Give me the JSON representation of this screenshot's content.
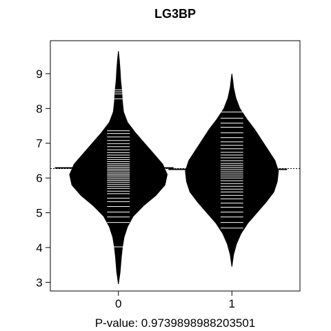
{
  "chart_data": {
    "type": "beanplot",
    "title": "LG3BP",
    "xlabel": "P-value: 0.9739898988203501",
    "ylabel": "",
    "categories": [
      "0",
      "1"
    ],
    "xlim": [
      -0.6,
      1.6
    ],
    "ylim": [
      2.75,
      9.95
    ],
    "yticks": [
      3,
      4,
      5,
      6,
      7,
      8,
      9
    ],
    "overall_line": 6.27,
    "grid": false,
    "beans": [
      {
        "category": "0",
        "mean": 6.29,
        "density": [
          [
            2.95,
            0.0
          ],
          [
            3.3,
            0.015
          ],
          [
            3.7,
            0.025
          ],
          [
            4.0,
            0.035
          ],
          [
            4.3,
            0.05
          ],
          [
            4.6,
            0.08
          ],
          [
            4.9,
            0.13
          ],
          [
            5.2,
            0.22
          ],
          [
            5.5,
            0.33
          ],
          [
            5.8,
            0.41
          ],
          [
            6.1,
            0.43
          ],
          [
            6.4,
            0.39
          ],
          [
            6.7,
            0.31
          ],
          [
            7.0,
            0.23
          ],
          [
            7.3,
            0.15
          ],
          [
            7.6,
            0.08
          ],
          [
            7.9,
            0.045
          ],
          [
            8.2,
            0.035
          ],
          [
            8.5,
            0.03
          ],
          [
            8.8,
            0.02
          ],
          [
            9.1,
            0.015
          ],
          [
            9.4,
            0.008
          ],
          [
            9.65,
            0.0
          ]
        ],
        "observations": [
          4.02,
          4.72,
          4.88,
          5.02,
          5.18,
          5.32,
          5.42,
          5.55,
          5.62,
          5.7,
          5.76,
          5.82,
          5.88,
          5.93,
          5.98,
          6.03,
          6.08,
          6.12,
          6.17,
          6.22,
          6.26,
          6.31,
          6.36,
          6.41,
          6.47,
          6.53,
          6.59,
          6.66,
          6.73,
          6.81,
          6.9,
          6.99,
          7.08,
          7.18,
          7.28,
          7.36,
          8.28,
          8.42,
          8.48,
          8.54
        ]
      },
      {
        "category": "1",
        "mean": 6.25,
        "density": [
          [
            3.45,
            0.0
          ],
          [
            3.8,
            0.015
          ],
          [
            4.1,
            0.04
          ],
          [
            4.4,
            0.08
          ],
          [
            4.7,
            0.14
          ],
          [
            5.0,
            0.22
          ],
          [
            5.3,
            0.3
          ],
          [
            5.6,
            0.37
          ],
          [
            5.9,
            0.4
          ],
          [
            6.2,
            0.41
          ],
          [
            6.5,
            0.38
          ],
          [
            6.8,
            0.32
          ],
          [
            7.1,
            0.26
          ],
          [
            7.4,
            0.2
          ],
          [
            7.7,
            0.13
          ],
          [
            8.0,
            0.07
          ],
          [
            8.3,
            0.035
          ],
          [
            8.6,
            0.015
          ],
          [
            8.8,
            0.008
          ],
          [
            9.0,
            0.0
          ]
        ],
        "observations": [
          4.56,
          4.72,
          4.88,
          5.02,
          5.16,
          5.28,
          5.4,
          5.5,
          5.6,
          5.68,
          5.76,
          5.84,
          5.92,
          6.0,
          6.06,
          6.12,
          6.18,
          6.24,
          6.3,
          6.36,
          6.42,
          6.5,
          6.58,
          6.66,
          6.74,
          6.84,
          6.94,
          7.04,
          7.16,
          7.3,
          7.46,
          7.58,
          7.72,
          7.9
        ]
      }
    ]
  }
}
